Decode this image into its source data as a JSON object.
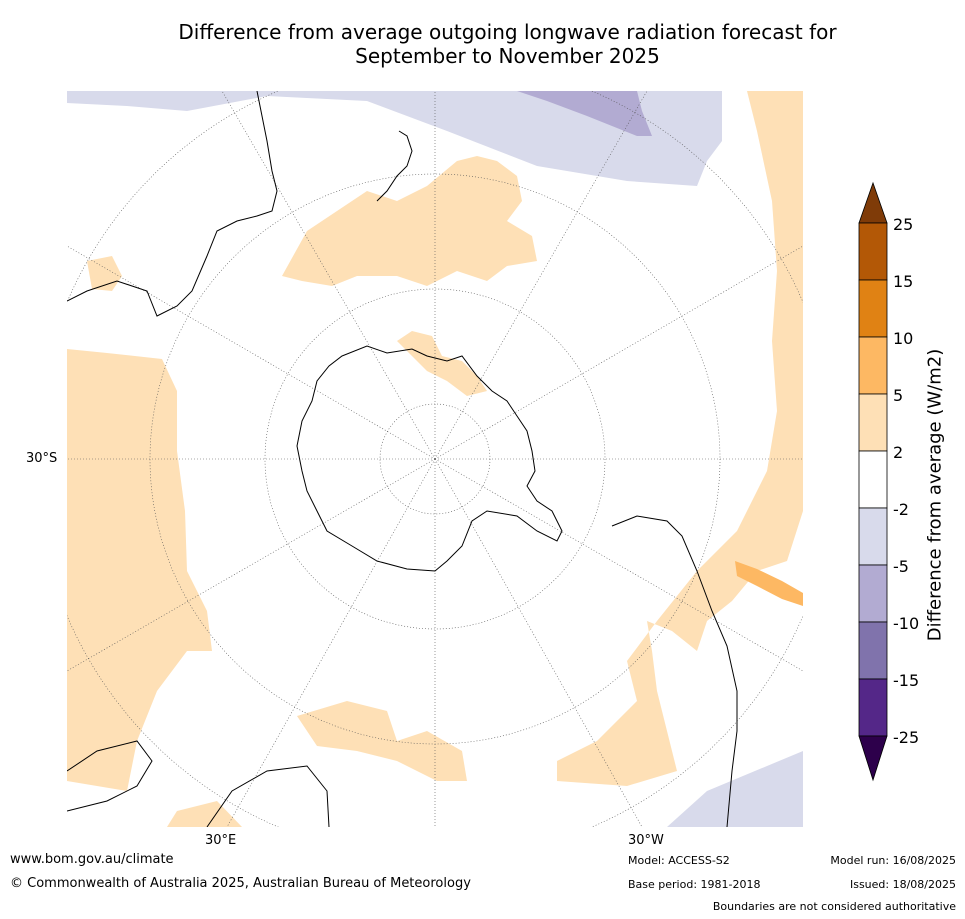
{
  "title_line1": "Difference from average outgoing longwave radiation forecast for",
  "title_line2": "September to November 2025",
  "map_labels": {
    "lat": "30°S",
    "lon_east": "30°E",
    "lon_west": "30°W"
  },
  "colorbar": {
    "title": "Difference from average (W/m2)",
    "levels": [
      "25",
      "15",
      "10",
      "5",
      "2",
      "-2",
      "-5",
      "-10",
      "-15",
      "-25"
    ],
    "colors": {
      "above_25": "#7f3b08",
      "15_25": "#b35806",
      "10_15": "#e08214",
      "5_10": "#fdb863",
      "2_5": "#fee0b6",
      "neutral": "#ffffff",
      "m2_m5": "#d8daeb",
      "m5_m10": "#b2abd2",
      "m10_m15": "#8073ac",
      "m15_m25": "#542788",
      "below_m25": "#2d004b"
    }
  },
  "footer": {
    "url": "www.bom.gov.au/climate",
    "copyright": "© Commonwealth of Australia 2025, Australian Bureau of Meteorology",
    "model": "Model: ACCESS-S2",
    "base_period": "Base period: 1981-2018",
    "model_run": "Model run: 16/08/2025",
    "issued": "Issued: 18/08/2025",
    "disclaimer": "Boundaries are not considered authoritative"
  }
}
